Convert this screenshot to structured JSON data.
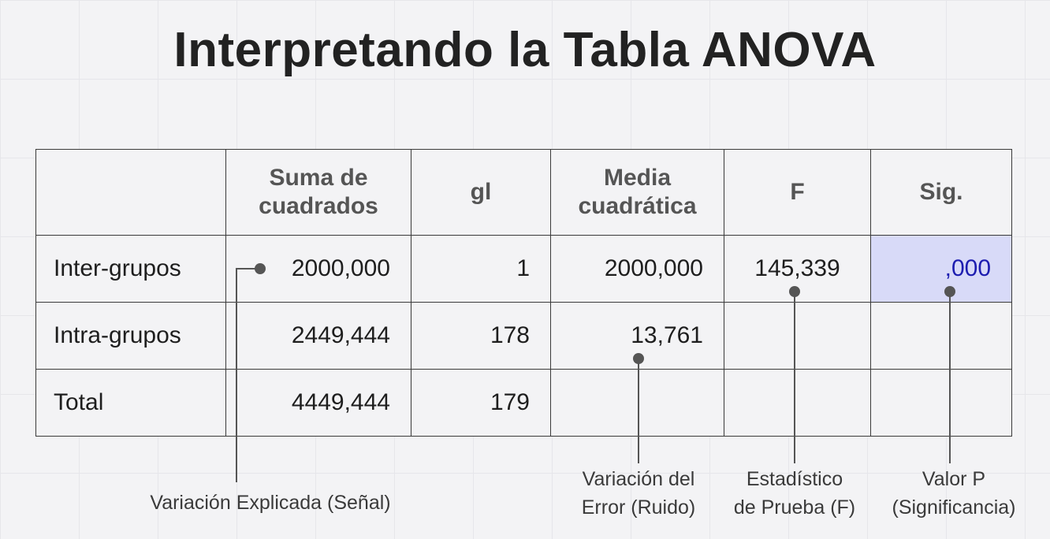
{
  "title": "Interpretando la Tabla ANOVA",
  "table": {
    "headers": [
      "",
      "Suma de\ncuadrados",
      "gl",
      "Media\ncuadrática",
      "F",
      "Sig."
    ],
    "rows": [
      [
        "Inter-grupos",
        "2000,000",
        "1",
        "2000,000",
        "145,339",
        ",000"
      ],
      [
        "Intra-grupos",
        "2449,444",
        "178",
        "13,761",
        "",
        ""
      ],
      [
        "Total",
        "4449,444",
        "179",
        "",
        "",
        ""
      ]
    ]
  },
  "annotations": {
    "explained": "Variación Explicada (Señal)",
    "error": "Variación del\nError (Ruido)",
    "fstat": "Estadístico\nde Prueba (F)",
    "pvalue": "Valor P\n(Significancia)"
  },
  "colors": {
    "highlight": "#d8daf8",
    "highlight_text": "#1d1db0",
    "connector": "#555555"
  }
}
